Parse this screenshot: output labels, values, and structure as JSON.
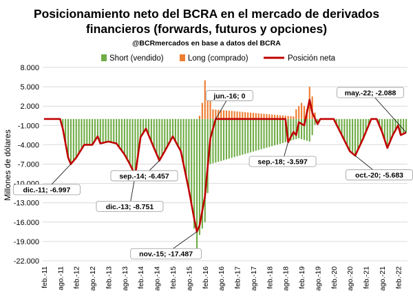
{
  "chart_data": {
    "type": "bar",
    "title_line1": "Posicionamiento neto del BCRA en el mercado de derivados",
    "title_line2": "financieros (forwards, futuros y opciones)",
    "subtitle": "@BCRmercados en base a datos del BCRA",
    "ylabel": "Millones de dólares",
    "xlabel": "",
    "ylim": [
      -22000,
      8000
    ],
    "ytick_values": [
      8000,
      5000,
      2000,
      -1000,
      -4000,
      -7000,
      -10000,
      -13000,
      -16000,
      -19000,
      -22000
    ],
    "ytick_labels": [
      "8.000",
      "5.000",
      "2.000",
      "-1.000",
      "-4.000",
      "-7.000",
      "-10.000",
      "-13.000",
      "-16.000",
      "-19.000",
      "-22.000"
    ],
    "xtick_labels": [
      "feb.-11",
      "ago.-11",
      "feb.-12",
      "ago.-12",
      "feb.-13",
      "ago.-13",
      "feb.-14",
      "ago.-14",
      "feb.-15",
      "ago.-15",
      "feb.-16",
      "ago.-16",
      "feb.-17",
      "ago.-17",
      "feb.-18",
      "ago.-18",
      "feb.-19",
      "ago.-19",
      "feb.-20",
      "ago.-20",
      "feb.-21",
      "ago.-21",
      "feb.-22"
    ],
    "x_start": "feb.-11",
    "x_end": "may.-22",
    "grid": true,
    "legend_position": "top",
    "legend": [
      "Short (vendido)",
      "Long (comprado)",
      "Posición neta"
    ],
    "colors": {
      "short": "#70AD47",
      "long": "#ED7D31",
      "net": "#C00000"
    },
    "series": [
      {
        "name": "Posición neta",
        "keypoints": [
          {
            "x": "feb.-11",
            "y": 0
          },
          {
            "x": "ago.-11",
            "y": 0
          },
          {
            "x": "sep.-11",
            "y": -1500
          },
          {
            "x": "nov.-11",
            "y": -6000
          },
          {
            "x": "dic.-11",
            "y": -6997
          },
          {
            "x": "feb.-12",
            "y": -6000
          },
          {
            "x": "may.-12",
            "y": -4000
          },
          {
            "x": "ago.-12",
            "y": -4000
          },
          {
            "x": "oct.-12",
            "y": -2700
          },
          {
            "x": "nov.-12",
            "y": -3800
          },
          {
            "x": "feb.-13",
            "y": -3500
          },
          {
            "x": "may.-13",
            "y": -3800
          },
          {
            "x": "ago.-13",
            "y": -5500
          },
          {
            "x": "oct.-13",
            "y": -7000
          },
          {
            "x": "dic.-13",
            "y": -8751
          },
          {
            "x": "feb.-14",
            "y": -2800
          },
          {
            "x": "abr.-14",
            "y": -1500
          },
          {
            "x": "jun.-14",
            "y": -3500
          },
          {
            "x": "sep.-14",
            "y": -6457
          },
          {
            "x": "nov.-14",
            "y": -5000
          },
          {
            "x": "feb.-15",
            "y": -2700
          },
          {
            "x": "may.-15",
            "y": -5000
          },
          {
            "x": "ago.-15",
            "y": -11000
          },
          {
            "x": "oct.-15",
            "y": -15500
          },
          {
            "x": "nov.-15",
            "y": -17487
          },
          {
            "x": "dic.-15",
            "y": -16500
          },
          {
            "x": "feb.-16",
            "y": -12000
          },
          {
            "x": "abr.-16",
            "y": -3000
          },
          {
            "x": "jun.-16",
            "y": 0
          },
          {
            "x": "ago.-18",
            "y": 0
          },
          {
            "x": "sep.-18",
            "y": -3597
          },
          {
            "x": "nov.-18",
            "y": -2000
          },
          {
            "x": "dic.-18",
            "y": -2500
          },
          {
            "x": "ene.-19",
            "y": -500
          },
          {
            "x": "mar.-19",
            "y": -1000
          },
          {
            "x": "may.-19",
            "y": 3000
          },
          {
            "x": "jun.-19",
            "y": 1000
          },
          {
            "x": "ago.-19",
            "y": -800
          },
          {
            "x": "sep.-19",
            "y": 0
          },
          {
            "x": "feb.-20",
            "y": 0
          },
          {
            "x": "may.-20",
            "y": -2500
          },
          {
            "x": "ago.-20",
            "y": -5000
          },
          {
            "x": "oct.-20",
            "y": -5683
          },
          {
            "x": "ene.-21",
            "y": -3000
          },
          {
            "x": "abr.-21",
            "y": 0
          },
          {
            "x": "jun.-21",
            "y": 0
          },
          {
            "x": "ago.-21",
            "y": -2000
          },
          {
            "x": "oct.-21",
            "y": -4500
          },
          {
            "x": "dic.-21",
            "y": -2500
          },
          {
            "x": "feb.-22",
            "y": -1000
          },
          {
            "x": "mar.-22",
            "y": -2500
          },
          {
            "x": "may.-22",
            "y": -2088
          }
        ]
      },
      {
        "name": "Long (comprado)",
        "keypoints": [
          {
            "x": "dic.-15",
            "y": 500
          },
          {
            "x": "ene.-16",
            "y": 2500
          },
          {
            "x": "feb.-16",
            "y": 6000
          },
          {
            "x": "mar.-16",
            "y": 4000
          },
          {
            "x": "abr.-16",
            "y": 3000
          },
          {
            "x": "may.-16",
            "y": 1500
          },
          {
            "x": "nov.-18",
            "y": 400
          },
          {
            "x": "dic.-18",
            "y": 1500
          },
          {
            "x": "feb.-19",
            "y": 2500
          },
          {
            "x": "abr.-19",
            "y": 1500
          },
          {
            "x": "may.-19",
            "y": 5000
          },
          {
            "x": "jun.-19",
            "y": 3500
          },
          {
            "x": "jul.-19",
            "y": 1000
          }
        ]
      },
      {
        "name": "Short (vendido)",
        "keypoints": [
          {
            "x": "oct.-15",
            "y": -17000
          },
          {
            "x": "nov.-15",
            "y": -20500
          },
          {
            "x": "dic.-15",
            "y": -18000
          },
          {
            "x": "feb.-16",
            "y": -16000
          },
          {
            "x": "abr.-16",
            "y": -7000
          },
          {
            "x": "ene.-19",
            "y": -3000
          },
          {
            "x": "may.-19",
            "y": -3500
          }
        ]
      }
    ],
    "annotations": [
      {
        "label": "dic.-11; -6.997",
        "x": "dic.-11",
        "y": -6997
      },
      {
        "label": "dic.-13; -8.751",
        "x": "dic.-13",
        "y": -8751
      },
      {
        "label": "sep.-14; -6.457",
        "x": "sep.-14",
        "y": -6457
      },
      {
        "label": "nov.-15; -17.487",
        "x": "nov.-15",
        "y": -17487
      },
      {
        "label": "jun.-16; 0",
        "x": "jun.-16",
        "y": 0
      },
      {
        "label": "sep.-18; -3.597",
        "x": "sep.-18",
        "y": -3597
      },
      {
        "label": "oct.-20; -5.683",
        "x": "oct.-20",
        "y": -5683
      },
      {
        "label": "may.-22; -2.088",
        "x": "may.-22",
        "y": -2088
      }
    ]
  }
}
